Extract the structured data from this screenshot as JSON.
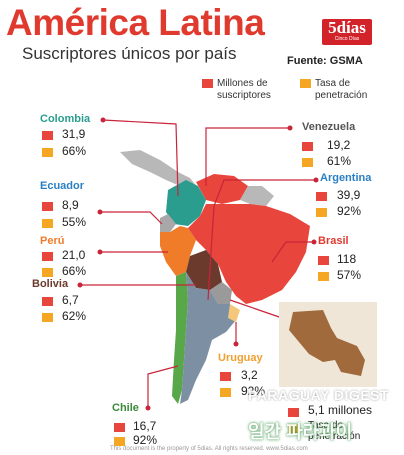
{
  "header": {
    "title": "América Latina",
    "subtitle": "Suscriptores únicos por país",
    "source": "Fuente: GSMA",
    "brand": "5días",
    "brand_sub": "Cinco Días"
  },
  "colors": {
    "subscribers": "#e8453c",
    "penetration": "#f5a623",
    "title": "#e03a2f",
    "teal": "#2a9d8f",
    "leader_line": "#c9243a"
  },
  "chart_data": {
    "type": "table",
    "title": "América Latina",
    "subtitle": "Suscriptores únicos por país",
    "legend": [
      {
        "key": "subscribers",
        "label": "Millones de suscriptores",
        "lines": [
          "Millones de",
          "suscriptores"
        ]
      },
      {
        "key": "penetration",
        "label": "Tasa de penetración",
        "lines": [
          "Tasa de",
          "penetración"
        ]
      }
    ],
    "countries": [
      {
        "name": "Colombia",
        "subscribers": "31,9",
        "penetration": "66%"
      },
      {
        "name": "Ecuador",
        "subscribers": "8,9",
        "penetration": "55%"
      },
      {
        "name": "Perú",
        "subscribers": "21,0",
        "penetration": "66%"
      },
      {
        "name": "Bolivia",
        "subscribers": "6,7",
        "penetration": "62%"
      },
      {
        "name": "Chile",
        "subscribers": "16,7",
        "penetration": "92%"
      },
      {
        "name": "Venezuela",
        "subscribers": "19,2",
        "penetration": "61%"
      },
      {
        "name": "Argentina",
        "subscribers": "39,9",
        "penetration": "92%"
      },
      {
        "name": "Brasil",
        "subscribers": "118",
        "penetration": "57%"
      },
      {
        "name": "Uruguay",
        "subscribers": "3,2",
        "penetration": "92%"
      }
    ],
    "paraguay_inset": {
      "subscribers": "5,1 millones",
      "penetration_label": "Tasa de penetración"
    }
  },
  "watermark": {
    "line1": "PARAGUAY DIGEST",
    "line2": "일간 파라과이"
  },
  "footnote": "This document is the property of 5dias. All rights reserved. www.5dias.com"
}
